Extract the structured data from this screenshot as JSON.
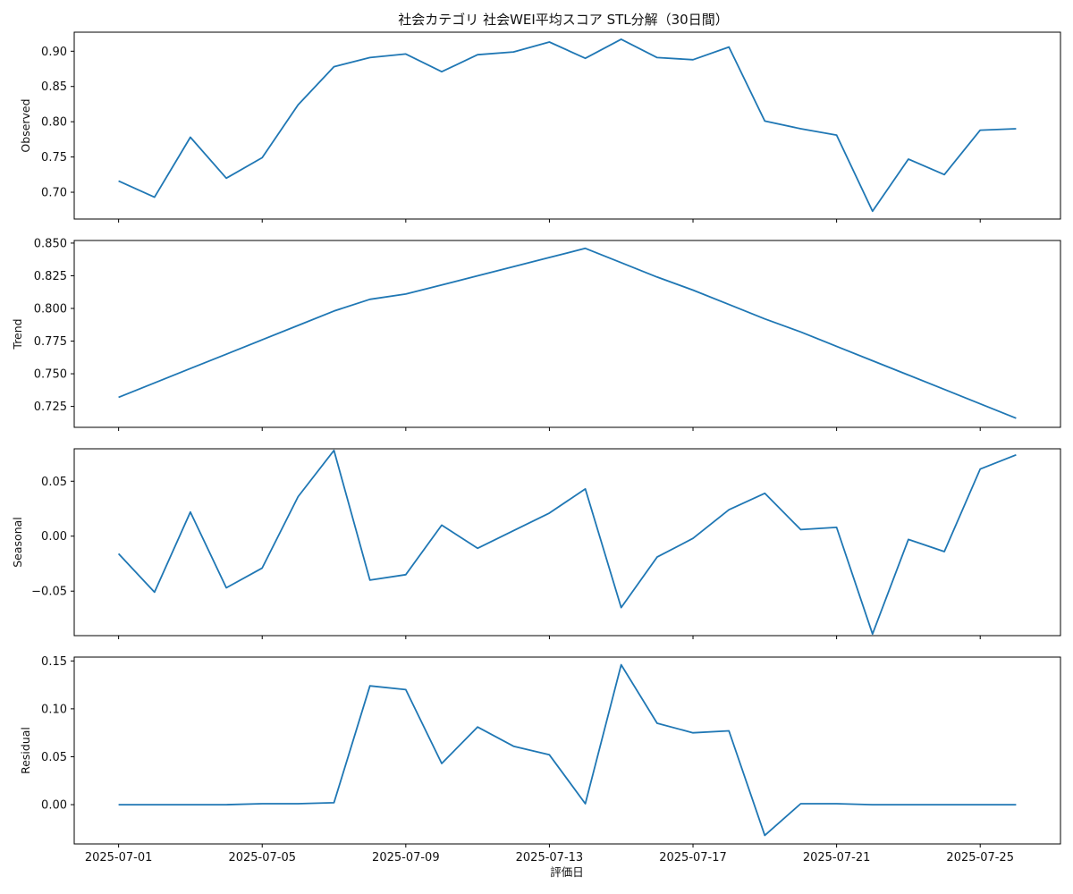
{
  "chart_data": {
    "type": "line",
    "title": "社会カテゴリ 社会WEI平均スコア STL分解（30日間）",
    "xlabel": "評価日",
    "line_color": "#1f77b4",
    "x": [
      "2025-07-01",
      "2025-07-02",
      "2025-07-03",
      "2025-07-04",
      "2025-07-05",
      "2025-07-06",
      "2025-07-07",
      "2025-07-08",
      "2025-07-09",
      "2025-07-10",
      "2025-07-11",
      "2025-07-12",
      "2025-07-13",
      "2025-07-14",
      "2025-07-15",
      "2025-07-16",
      "2025-07-17",
      "2025-07-18",
      "2025-07-19",
      "2025-07-20",
      "2025-07-21",
      "2025-07-22",
      "2025-07-23",
      "2025-07-24",
      "2025-07-25",
      "2025-07-26"
    ],
    "x_ticks": [
      "2025-07-01",
      "2025-07-05",
      "2025-07-09",
      "2025-07-13",
      "2025-07-17",
      "2025-07-21",
      "2025-07-25"
    ],
    "series": [
      {
        "name": "Observed",
        "ylim": [
          0.662,
          0.927
        ],
        "yticks": [
          0.7,
          0.75,
          0.8,
          0.85,
          0.9
        ],
        "tick_labels": [
          "0.70",
          "0.75",
          "0.80",
          "0.85",
          "0.90"
        ],
        "values": [
          0.716,
          0.693,
          0.778,
          0.72,
          0.749,
          0.824,
          0.878,
          0.891,
          0.896,
          0.871,
          0.895,
          0.899,
          0.913,
          0.89,
          0.917,
          0.891,
          0.888,
          0.906,
          0.801,
          0.79,
          0.781,
          0.673,
          0.747,
          0.725,
          0.788,
          0.79
        ]
      },
      {
        "name": "Trend",
        "ylim": [
          0.709,
          0.852
        ],
        "yticks": [
          0.725,
          0.75,
          0.775,
          0.8,
          0.825,
          0.85
        ],
        "tick_labels": [
          "0.725",
          "0.750",
          "0.775",
          "0.800",
          "0.825",
          "0.850"
        ],
        "values": [
          0.732,
          0.743,
          0.754,
          0.765,
          0.776,
          0.787,
          0.798,
          0.807,
          0.811,
          0.818,
          0.825,
          0.832,
          0.839,
          0.846,
          0.835,
          0.824,
          0.814,
          0.803,
          0.792,
          0.782,
          0.771,
          0.76,
          0.749,
          0.738,
          0.727,
          0.716
        ]
      },
      {
        "name": "Seasonal",
        "ylim": [
          -0.0905,
          0.0795
        ],
        "yticks": [
          -0.05,
          0.0,
          0.05
        ],
        "tick_labels": [
          "−0.05",
          "0.00",
          "0.05"
        ],
        "values": [
          -0.016,
          -0.051,
          0.022,
          -0.047,
          -0.029,
          0.036,
          0.078,
          -0.04,
          -0.035,
          0.01,
          -0.011,
          0.005,
          0.021,
          0.043,
          -0.065,
          -0.019,
          -0.002,
          0.024,
          0.039,
          0.006,
          0.008,
          -0.089,
          -0.003,
          -0.014,
          0.061,
          0.074
        ]
      },
      {
        "name": "Residual",
        "ylim": [
          -0.041,
          0.154
        ],
        "yticks": [
          0.0,
          0.05,
          0.1,
          0.15
        ],
        "tick_labels": [
          "0.00",
          "0.05",
          "0.10",
          "0.15"
        ],
        "values": [
          0.0,
          0.0,
          0.0,
          0.0,
          0.001,
          0.001,
          0.002,
          0.124,
          0.12,
          0.043,
          0.081,
          0.061,
          0.052,
          0.001,
          0.146,
          0.085,
          0.075,
          0.077,
          -0.032,
          0.001,
          0.001,
          0.0,
          0.0,
          0.0,
          0.0,
          0.0
        ]
      }
    ]
  }
}
